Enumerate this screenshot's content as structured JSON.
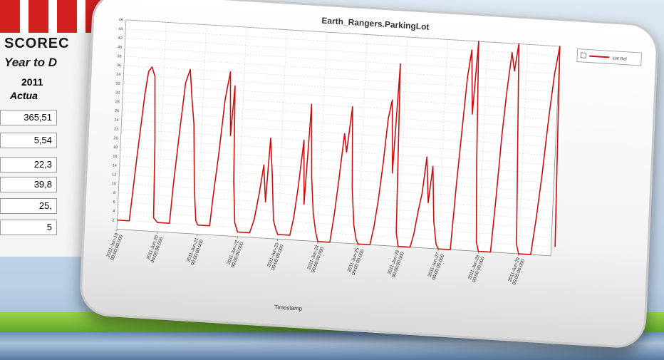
{
  "background": {
    "scorecard_title": "SCOREC",
    "scorecard_subtitle": "Year to D",
    "year": "2011",
    "actual_label": "Actua",
    "rows": [
      "365,51",
      "5,54",
      "22,3",
      "39,8",
      "25,",
      "5"
    ]
  },
  "chart_data": {
    "type": "line",
    "title": "Earth_Rangers.ParkingLot",
    "xlabel": "Timestamp",
    "ylabel": "",
    "ylim": [
      0,
      46
    ],
    "yticks": [
      2,
      4,
      6,
      8,
      10,
      12,
      14,
      16,
      18,
      20,
      22,
      24,
      26,
      28,
      30,
      32,
      34,
      36,
      38,
      40,
      42,
      44,
      46
    ],
    "x_tick_labels": [
      "2011-Jun-19 00:00:00.000",
      "2011-Jun-20 00:00:00.000",
      "2011-Jun-21 00:00:00.000",
      "2011-Jun-22 00:00:00.000",
      "2011-Jun-23 00:00:00.000",
      "2011-Jun-24 00:00:00.000",
      "2011-Jun-25 00:00:00.000",
      "2011-Jun-26 00:00:00.000",
      "2011-Jun-27 00:00:00.000",
      "2011-Jun-28 00:00:00.000",
      "2011-Jun-29 00:00:00.000"
    ],
    "grid": true,
    "legend": "top-right",
    "series": [
      {
        "name": "kW Ref",
        "color": "#cc1111",
        "x": [
          0,
          0.3,
          0.35,
          0.42,
          0.55,
          0.62,
          0.7,
          0.78,
          0.85,
          0.9,
          1.0,
          1.3,
          1.35,
          1.45,
          1.55,
          1.65,
          1.72,
          1.8,
          1.88,
          1.95,
          2.0,
          2.3,
          2.35,
          2.45,
          2.55,
          2.65,
          2.72,
          2.78,
          2.85,
          2.92,
          3.0,
          3.3,
          3.4,
          3.5,
          3.58,
          3.66,
          3.72,
          3.8,
          3.88,
          3.95,
          4.0,
          4.3,
          4.38,
          4.46,
          4.55,
          4.62,
          4.7,
          4.78,
          4.86,
          4.94,
          5.0,
          5.3,
          5.38,
          5.46,
          5.55,
          5.62,
          5.72,
          5.8,
          5.88,
          5.95,
          6.0,
          6.3,
          6.38,
          6.46,
          6.54,
          6.62,
          6.7,
          6.78,
          6.86,
          6.94,
          7.0,
          7.3,
          7.38,
          7.46,
          7.54,
          7.62,
          7.7,
          7.78,
          7.86,
          7.94,
          8.0,
          8.3,
          8.38,
          8.46,
          8.54,
          8.62,
          8.7,
          8.78,
          8.86,
          8.94,
          9.0,
          9.3,
          9.38,
          9.46,
          9.54,
          9.62,
          9.7,
          9.78,
          9.86,
          9.94,
          10.0,
          10.3,
          10.4,
          10.5,
          10.6,
          10.7,
          10.8,
          10.9
        ],
        "y": [
          2,
          2,
          8,
          16,
          30,
          35,
          36,
          34,
          20,
          3,
          2,
          2,
          10,
          22,
          33,
          36,
          30,
          24,
          10,
          3,
          2,
          2,
          8,
          18,
          30,
          36,
          22,
          33,
          12,
          3,
          1,
          1,
          4,
          10,
          16,
          8,
          22,
          14,
          4,
          2,
          1,
          1,
          5,
          12,
          22,
          8,
          30,
          14,
          6,
          2,
          0,
          0,
          6,
          14,
          24,
          20,
          30,
          12,
          4,
          1,
          0,
          0,
          4,
          10,
          18,
          28,
          32,
          16,
          40,
          3,
          0,
          0,
          3,
          8,
          12,
          20,
          10,
          18,
          6,
          1,
          0,
          0,
          14,
          26,
          38,
          44,
          30,
          46,
          20,
          2,
          0,
          0,
          12,
          26,
          36,
          44,
          40,
          46,
          24,
          2,
          0,
          0,
          8,
          18,
          30,
          40,
          46,
          2
        ]
      }
    ]
  }
}
